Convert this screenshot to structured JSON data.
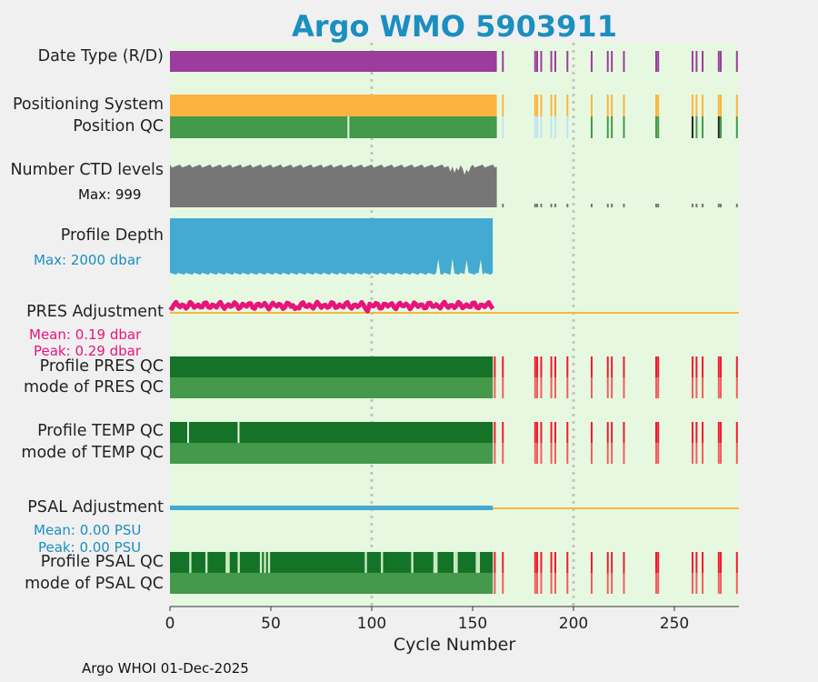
{
  "title": "Argo WMO 5903911",
  "footer": "Argo WHOI 01-Dec-2025",
  "colors": {
    "background": "#e6f9e0",
    "dataType": "#9c3c9c",
    "positioning": "#fcb440",
    "qcGood": "#44994a",
    "qcDark": "#157328",
    "qcBad": "#f01a2e",
    "qcBadLight": "#f25c5c",
    "ctd": "#767676",
    "depth": "#44aad2",
    "presAdj": "#e8147d",
    "zeroLine": "#f5b840",
    "grid": "#c4c4c4",
    "qcSparse": "#c2e4f2",
    "qcVeryDark": "#1a2a1a",
    "title": "#1a8fc0"
  },
  "rows": {
    "data_type": "Date Type (R/D)",
    "positioning": "Positioning System",
    "position_qc": "Position QC",
    "ctd_levels": "Number CTD levels",
    "ctd_max": "Max: 999",
    "profile_depth": "Profile Depth",
    "depth_max": "Max: 2000 dbar",
    "pres_adj": "PRES Adjustment",
    "pres_mean": "Mean: 0.19 dbar",
    "pres_peak": "Peak: 0.29 dbar",
    "profile_pres_qc": "Profile PRES QC",
    "mode_pres_qc": "mode of PRES QC",
    "profile_temp_qc": "Profile TEMP QC",
    "mode_temp_qc": "mode of TEMP QC",
    "psal_adj": "PSAL Adjustment",
    "psal_mean": "Mean: 0.00 PSU",
    "psal_peak": "Peak: 0.00 PSU",
    "profile_psal_qc": "Profile PSAL QC",
    "mode_psal_qc": "mode of PSAL QC"
  },
  "chart_data": {
    "type": "bar",
    "title": "Argo WMO 5903911",
    "xlabel": "Cycle Number",
    "ylabel": "",
    "xlim": [
      0,
      282
    ],
    "xticks": [
      "0",
      "50",
      "100",
      "150",
      "200",
      "250"
    ],
    "gridlines_x": [
      100,
      200
    ],
    "continuous_until": 162,
    "sparse_cycles": [
      165,
      181,
      182,
      184,
      189,
      191,
      197,
      209,
      217,
      219,
      225,
      241,
      242,
      259,
      261,
      264,
      272,
      273,
      281
    ],
    "bad_qc_cycles": [
      161,
      165,
      181,
      182,
      184,
      189,
      191,
      197,
      209,
      217,
      219,
      225,
      241,
      242,
      259,
      261,
      264,
      272,
      273,
      281
    ],
    "position_qc_dark_cycles": [
      259,
      260,
      272
    ],
    "profile_temp_qc_light_cycles": [
      9,
      34
    ],
    "profile_psal_qc_light_cycles": [
      10,
      18,
      28,
      29,
      34,
      45,
      47,
      49,
      97,
      105,
      120,
      131,
      132,
      141,
      142,
      152,
      153
    ],
    "ctd_max_levels": 999,
    "profile_depth_max_dbar": 2000,
    "pres_adjustment_mean_dbar": 0.19,
    "pres_adjustment_peak_dbar": 0.29,
    "psal_adjustment_mean_psu": 0.0,
    "psal_adjustment_peak_psu": 0.0
  }
}
